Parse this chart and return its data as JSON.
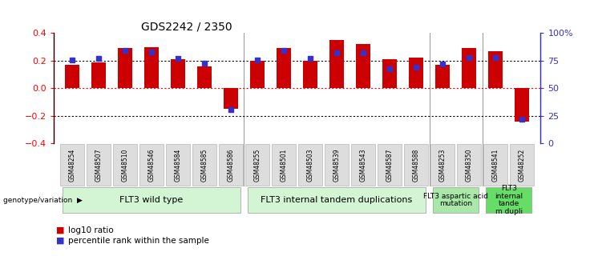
{
  "title": "GDS2242 / 2350",
  "samples": [
    "GSM48254",
    "GSM48507",
    "GSM48510",
    "GSM48546",
    "GSM48584",
    "GSM48585",
    "GSM48586",
    "GSM48255",
    "GSM48501",
    "GSM48503",
    "GSM48539",
    "GSM48543",
    "GSM48587",
    "GSM48588",
    "GSM48253",
    "GSM48350",
    "GSM48541",
    "GSM48252"
  ],
  "log10_ratio": [
    0.17,
    0.19,
    0.29,
    0.3,
    0.21,
    0.16,
    -0.15,
    0.2,
    0.29,
    0.2,
    0.35,
    0.32,
    0.21,
    0.22,
    0.17,
    0.29,
    0.27,
    -0.24
  ],
  "percentile_rank": [
    76,
    77,
    84,
    83,
    77,
    73,
    31,
    76,
    84,
    77,
    82,
    82,
    68,
    69,
    72,
    78,
    78,
    22
  ],
  "bar_color": "#cc0000",
  "dot_color": "#3333cc",
  "ylim_left": [
    -0.4,
    0.4
  ],
  "ylim_right": [
    0,
    100
  ],
  "yticks_left": [
    -0.4,
    -0.2,
    0.0,
    0.2,
    0.4
  ],
  "yticks_right": [
    0,
    25,
    50,
    75,
    100
  ],
  "ytick_labels_right": [
    "0",
    "25",
    "50",
    "75",
    "100%"
  ],
  "hlines": [
    0.2,
    0.0,
    -0.2
  ],
  "hline_colors": [
    "black",
    "red",
    "black"
  ],
  "hline_styles": [
    "dotted",
    "dotted",
    "dotted"
  ],
  "group_data": [
    {
      "start": 0,
      "end": 6,
      "label": "FLT3 wild type",
      "color": "#d4f5d4"
    },
    {
      "start": 7,
      "end": 13,
      "label": "FLT3 internal tandem duplications",
      "color": "#d4f5d4"
    },
    {
      "start": 14,
      "end": 15,
      "label": "FLT3 aspartic acid\nmutation",
      "color": "#aae8aa"
    },
    {
      "start": 16,
      "end": 17,
      "label": "FLT3\ninternal\ntande\nm dupli",
      "color": "#66dd66"
    }
  ],
  "group_separators": [
    6.5,
    13.5,
    15.5
  ],
  "bar_width": 0.55,
  "background_color": "#ffffff"
}
